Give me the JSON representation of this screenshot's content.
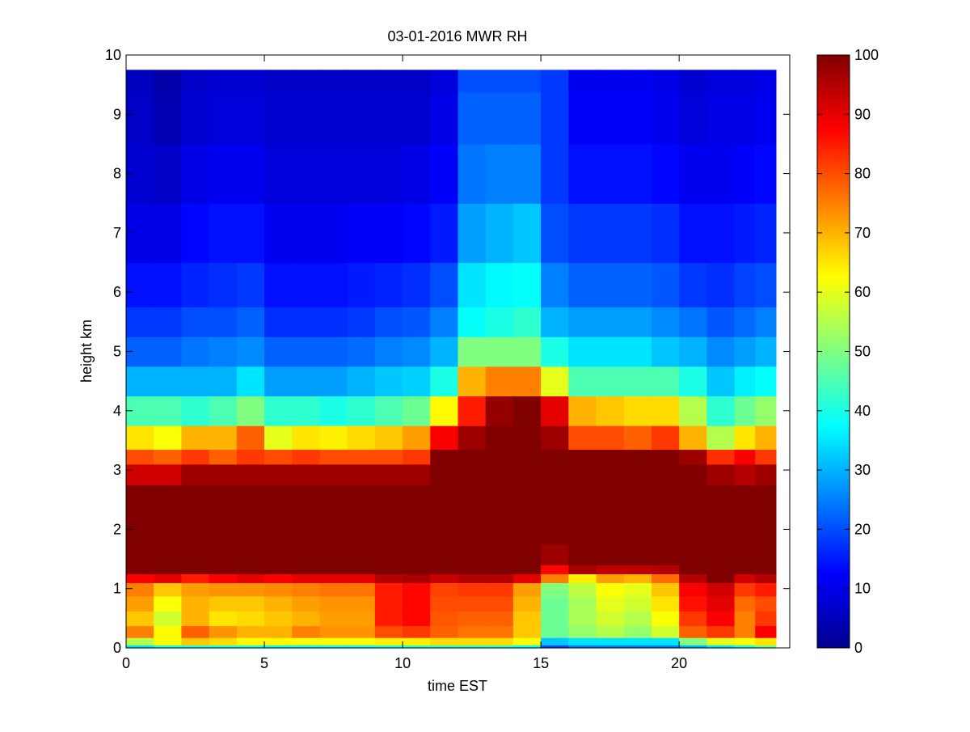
{
  "chart_data": {
    "type": "heatmap",
    "title": "03-01-2016 MWR RH",
    "xlabel": "time EST",
    "ylabel": "height km",
    "xlim": [
      0,
      24
    ],
    "ylim": [
      0,
      10
    ],
    "x_ticks": [
      0,
      5,
      10,
      15,
      20
    ],
    "y_ticks": [
      0,
      1,
      2,
      3,
      4,
      5,
      6,
      7,
      8,
      9,
      10
    ],
    "colormap": "jet",
    "colorbar": {
      "range": [
        0,
        100
      ],
      "ticks": [
        0,
        10,
        20,
        30,
        40,
        50,
        60,
        70,
        80,
        90,
        100
      ]
    },
    "data_extent": {
      "x": [
        0,
        23.5
      ],
      "y": [
        0,
        9.75
      ]
    },
    "x_centers": [
      0.5,
      1.5,
      2.5,
      3.5,
      4.5,
      5.5,
      6.5,
      7.5,
      8.5,
      9.5,
      10.5,
      11.5,
      12.5,
      13.5,
      14.5,
      15.5,
      16.5,
      17.5,
      18.5,
      19.5,
      20.5,
      21.5,
      22.5,
      23.0
    ],
    "profile_heights": [
      0.0,
      0.1,
      0.25,
      0.5,
      0.75,
      1.0,
      1.2,
      1.3,
      1.5,
      2.0,
      2.5,
      3.0,
      3.2,
      3.5,
      4.0,
      4.5,
      5.0,
      5.5,
      6.0,
      7.0,
      8.0,
      9.0,
      9.75
    ],
    "profiles": [
      [
        35,
        55,
        75,
        68,
        72,
        75,
        88,
        100,
        100,
        100,
        100,
        92,
        80,
        65,
        45,
        30,
        22,
        18,
        14,
        10,
        8,
        7,
        6
      ],
      [
        40,
        62,
        63,
        58,
        62,
        68,
        90,
        100,
        100,
        100,
        100,
        92,
        78,
        62,
        45,
        30,
        22,
        18,
        14,
        10,
        7,
        5,
        4
      ],
      [
        40,
        68,
        78,
        70,
        70,
        72,
        85,
        100,
        100,
        100,
        100,
        97,
        82,
        70,
        42,
        30,
        24,
        20,
        16,
        13,
        10,
        8,
        7
      ],
      [
        40,
        66,
        73,
        65,
        68,
        73,
        88,
        100,
        100,
        100,
        100,
        97,
        78,
        70,
        45,
        30,
        25,
        20,
        17,
        14,
        11,
        9,
        8
      ],
      [
        40,
        63,
        70,
        66,
        68,
        73,
        90,
        100,
        100,
        100,
        100,
        97,
        82,
        78,
        50,
        35,
        26,
        22,
        18,
        14,
        11,
        9,
        8
      ],
      [
        38,
        63,
        70,
        68,
        70,
        74,
        88,
        100,
        100,
        100,
        100,
        97,
        80,
        60,
        42,
        28,
        22,
        17,
        14,
        11,
        9,
        8,
        7
      ],
      [
        38,
        62,
        75,
        70,
        72,
        75,
        90,
        100,
        100,
        100,
        100,
        97,
        82,
        65,
        42,
        28,
        22,
        17,
        14,
        11,
        9,
        8,
        7
      ],
      [
        38,
        62,
        73,
        72,
        73,
        76,
        90,
        100,
        100,
        100,
        100,
        97,
        80,
        64,
        40,
        28,
        22,
        17,
        14,
        11,
        9,
        8,
        7
      ],
      [
        38,
        62,
        73,
        72,
        73,
        76,
        90,
        100,
        100,
        100,
        100,
        97,
        80,
        66,
        42,
        30,
        23,
        18,
        15,
        12,
        9,
        8,
        7
      ],
      [
        40,
        64,
        80,
        85,
        85,
        85,
        95,
        100,
        100,
        100,
        100,
        97,
        80,
        68,
        45,
        32,
        25,
        20,
        16,
        12,
        9,
        8,
        7
      ],
      [
        42,
        64,
        82,
        87,
        87,
        87,
        96,
        100,
        100,
        100,
        100,
        97,
        82,
        72,
        48,
        33,
        26,
        21,
        17,
        13,
        10,
        8,
        7
      ],
      [
        42,
        66,
        78,
        79,
        80,
        81,
        93,
        100,
        100,
        100,
        100,
        100,
        100,
        88,
        63,
        40,
        30,
        25,
        20,
        15,
        12,
        10,
        9
      ],
      [
        42,
        66,
        76,
        78,
        80,
        82,
        95,
        100,
        100,
        100,
        100,
        100,
        100,
        97,
        85,
        70,
        50,
        38,
        35,
        28,
        24,
        22,
        20
      ],
      [
        42,
        66,
        76,
        78,
        80,
        82,
        95,
        100,
        100,
        100,
        100,
        100,
        100,
        100,
        98,
        75,
        50,
        40,
        37,
        30,
        25,
        22,
        20
      ],
      [
        38,
        62,
        68,
        68,
        70,
        72,
        90,
        100,
        100,
        100,
        100,
        100,
        100,
        100,
        100,
        75,
        50,
        42,
        38,
        32,
        25,
        22,
        20
      ],
      [
        20,
        32,
        48,
        48,
        48,
        50,
        75,
        87,
        97,
        100,
        100,
        100,
        100,
        97,
        90,
        60,
        40,
        30,
        25,
        20,
        18,
        18,
        18
      ],
      [
        25,
        35,
        52,
        54,
        54,
        56,
        64,
        96,
        100,
        100,
        100,
        100,
        100,
        80,
        70,
        45,
        35,
        28,
        22,
        18,
        14,
        12,
        11
      ],
      [
        25,
        35,
        55,
        58,
        60,
        62,
        72,
        94,
        100,
        100,
        100,
        100,
        100,
        80,
        68,
        45,
        35,
        28,
        22,
        18,
        14,
        12,
        11
      ],
      [
        25,
        35,
        52,
        55,
        58,
        60,
        70,
        94,
        100,
        100,
        100,
        100,
        100,
        78,
        66,
        45,
        35,
        28,
        22,
        18,
        14,
        12,
        11
      ],
      [
        25,
        35,
        58,
        62,
        65,
        68,
        77,
        95,
        100,
        100,
        100,
        100,
        100,
        82,
        66,
        45,
        32,
        26,
        21,
        17,
        13,
        11,
        10
      ],
      [
        30,
        50,
        78,
        82,
        86,
        88,
        95,
        100,
        100,
        100,
        100,
        100,
        97,
        70,
        55,
        40,
        30,
        24,
        18,
        14,
        11,
        9,
        8
      ],
      [
        35,
        60,
        82,
        88,
        90,
        92,
        100,
        100,
        100,
        100,
        100,
        97,
        83,
        55,
        42,
        32,
        26,
        21,
        17,
        14,
        11,
        10,
        9
      ],
      [
        40,
        62,
        75,
        75,
        77,
        82,
        92,
        100,
        100,
        100,
        100,
        95,
        88,
        65,
        48,
        36,
        28,
        23,
        19,
        15,
        12,
        10,
        9
      ],
      [
        48,
        65,
        88,
        82,
        80,
        85,
        95,
        100,
        100,
        100,
        100,
        97,
        82,
        70,
        52,
        38,
        30,
        25,
        20,
        16,
        13,
        11,
        10
      ]
    ]
  }
}
